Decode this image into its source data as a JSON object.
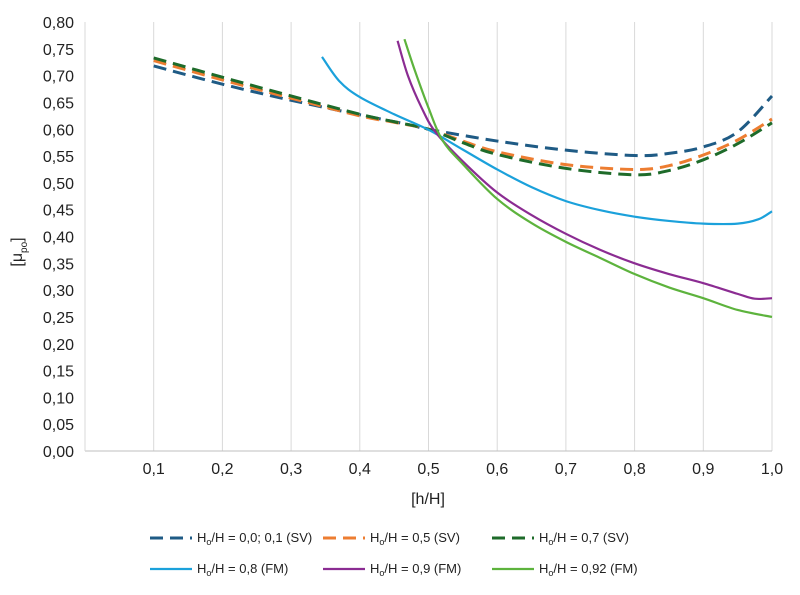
{
  "chart_data": {
    "type": "line",
    "xlabel": "[h/H]",
    "ylabel": {
      "text": "[μ",
      "subscript": "po",
      "close": "]"
    },
    "xlim": [
      0.0,
      1.0
    ],
    "ylim": [
      0.0,
      0.8
    ],
    "x_ticks": [
      "0,1",
      "0,2",
      "0,3",
      "0,4",
      "0,5",
      "0,6",
      "0,7",
      "0,8",
      "0,9",
      "1,0"
    ],
    "x_tick_values": [
      0.1,
      0.2,
      0.3,
      0.4,
      0.5,
      0.6,
      0.7,
      0.8,
      0.9,
      1.0
    ],
    "y_ticks": [
      "0,00",
      "0,05",
      "0,10",
      "0,15",
      "0,20",
      "0,25",
      "0,30",
      "0,35",
      "0,40",
      "0,45",
      "0,50",
      "0,55",
      "0,60",
      "0,65",
      "0,70",
      "0,75",
      "0,80"
    ],
    "y_tick_values": [
      0.0,
      0.05,
      0.1,
      0.15,
      0.2,
      0.25,
      0.3,
      0.35,
      0.4,
      0.45,
      0.5,
      0.55,
      0.6,
      0.65,
      0.7,
      0.75,
      0.8
    ],
    "grid": "vertical",
    "legend_position": "bottom",
    "series": [
      {
        "name_prefix": "H",
        "name_sub": "o",
        "name_suffix": "/H = 0,0; 0,1 (SV)",
        "color": "#1f5b85",
        "style": "dashed",
        "points": [
          [
            0.1,
            0.718
          ],
          [
            0.2,
            0.684
          ],
          [
            0.3,
            0.654
          ],
          [
            0.4,
            0.627
          ],
          [
            0.47,
            0.609
          ],
          [
            0.5,
            0.6
          ],
          [
            0.6,
            0.578
          ],
          [
            0.7,
            0.561
          ],
          [
            0.8,
            0.551
          ],
          [
            0.85,
            0.555
          ],
          [
            0.9,
            0.567
          ],
          [
            0.95,
            0.595
          ],
          [
            1.0,
            0.662
          ]
        ]
      },
      {
        "name_prefix": "H",
        "name_sub": "o",
        "name_suffix": "/H = 0,5 (SV)",
        "color": "#ed7d31",
        "style": "dashed",
        "points": [
          [
            0.1,
            0.728
          ],
          [
            0.2,
            0.692
          ],
          [
            0.3,
            0.658
          ],
          [
            0.4,
            0.625
          ],
          [
            0.45,
            0.613
          ],
          [
            0.5,
            0.6
          ],
          [
            0.55,
            0.578
          ],
          [
            0.6,
            0.558
          ],
          [
            0.7,
            0.534
          ],
          [
            0.8,
            0.525
          ],
          [
            0.85,
            0.532
          ],
          [
            0.9,
            0.552
          ],
          [
            0.95,
            0.58
          ],
          [
            1.0,
            0.619
          ]
        ]
      },
      {
        "name_prefix": "H",
        "name_sub": "o",
        "name_suffix": "/H = 0,7 (SV)",
        "color": "#1e6b2a",
        "style": "dashed",
        "points": [
          [
            0.1,
            0.733
          ],
          [
            0.2,
            0.697
          ],
          [
            0.3,
            0.662
          ],
          [
            0.4,
            0.628
          ],
          [
            0.45,
            0.614
          ],
          [
            0.5,
            0.6
          ],
          [
            0.55,
            0.575
          ],
          [
            0.6,
            0.553
          ],
          [
            0.7,
            0.527
          ],
          [
            0.8,
            0.515
          ],
          [
            0.85,
            0.523
          ],
          [
            0.9,
            0.543
          ],
          [
            0.95,
            0.573
          ],
          [
            1.0,
            0.612
          ]
        ]
      },
      {
        "name_prefix": "H",
        "name_sub": "o",
        "name_suffix": "/H = 0,8 (FM)",
        "color": "#1ba1db",
        "style": "solid",
        "points": [
          [
            0.345,
            0.735
          ],
          [
            0.37,
            0.69
          ],
          [
            0.4,
            0.66
          ],
          [
            0.45,
            0.628
          ],
          [
            0.5,
            0.599
          ],
          [
            0.55,
            0.562
          ],
          [
            0.6,
            0.525
          ],
          [
            0.65,
            0.492
          ],
          [
            0.7,
            0.466
          ],
          [
            0.75,
            0.449
          ],
          [
            0.8,
            0.437
          ],
          [
            0.85,
            0.429
          ],
          [
            0.9,
            0.424
          ],
          [
            0.95,
            0.424
          ],
          [
            0.98,
            0.432
          ],
          [
            1.0,
            0.447
          ]
        ]
      },
      {
        "name_prefix": "H",
        "name_sub": "o",
        "name_suffix": "/H = 0,9 (FM)",
        "color": "#8b2c92",
        "style": "solid",
        "points": [
          [
            0.455,
            0.765
          ],
          [
            0.47,
            0.7
          ],
          [
            0.49,
            0.64
          ],
          [
            0.51,
            0.595
          ],
          [
            0.55,
            0.54
          ],
          [
            0.6,
            0.482
          ],
          [
            0.65,
            0.44
          ],
          [
            0.7,
            0.405
          ],
          [
            0.75,
            0.375
          ],
          [
            0.8,
            0.35
          ],
          [
            0.85,
            0.33
          ],
          [
            0.9,
            0.313
          ],
          [
            0.95,
            0.293
          ],
          [
            0.975,
            0.284
          ],
          [
            1.0,
            0.285
          ]
        ]
      },
      {
        "name_prefix": "H",
        "name_sub": "o",
        "name_suffix": "/H = 0,92 (FM)",
        "color": "#5db33d",
        "style": "solid",
        "points": [
          [
            0.465,
            0.768
          ],
          [
            0.48,
            0.71
          ],
          [
            0.5,
            0.64
          ],
          [
            0.52,
            0.58
          ],
          [
            0.55,
            0.535
          ],
          [
            0.6,
            0.47
          ],
          [
            0.65,
            0.425
          ],
          [
            0.7,
            0.39
          ],
          [
            0.75,
            0.36
          ],
          [
            0.8,
            0.33
          ],
          [
            0.85,
            0.305
          ],
          [
            0.9,
            0.285
          ],
          [
            0.95,
            0.263
          ],
          [
            1.0,
            0.25
          ]
        ]
      }
    ]
  }
}
